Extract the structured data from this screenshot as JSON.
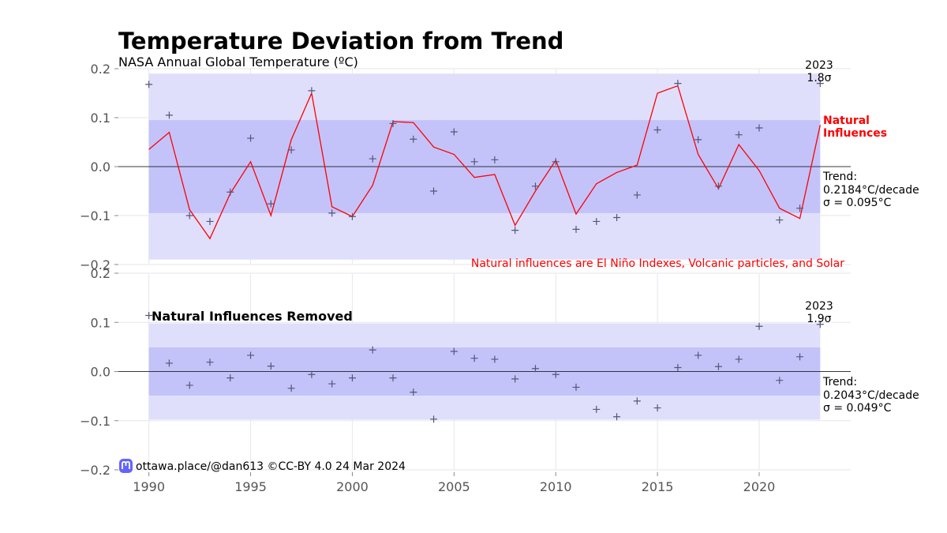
{
  "chart_title": "Temperature Deviation from Trend",
  "footer": {
    "credit": "ottawa.place/@dan613 ©CC-BY 4.0  24 Mar 2024",
    "logo_icon": "mastodon-icon"
  },
  "colors": {
    "band_inner": "#c3c3fa",
    "band_outer": "#dfdffc",
    "line": "#ff0000",
    "marker": "#555577"
  },
  "chart_data": [
    {
      "type": "line",
      "title": "",
      "subtitle": "NASA Annual Global Temperature (ºC)",
      "ylim": [
        -0.2,
        0.2
      ],
      "yticks": [
        "0.2",
        "0.1",
        "0.0",
        "−0.1",
        "−0.2"
      ],
      "xlim": [
        1988.5,
        2024.5
      ],
      "xticks": [
        "1990",
        "1995",
        "2000",
        "2005",
        "2010",
        "2015",
        "2020"
      ],
      "grid": true,
      "x": [
        1990,
        1991,
        1992,
        1993,
        1994,
        1995,
        1996,
        1997,
        1998,
        1999,
        2000,
        2001,
        2002,
        2003,
        2004,
        2005,
        2006,
        2007,
        2008,
        2009,
        2010,
        2011,
        2012,
        2013,
        2014,
        2015,
        2016,
        2017,
        2018,
        2019,
        2020,
        2021,
        2022,
        2023
      ],
      "series": [
        {
          "name": "Natural Influences",
          "style": "line",
          "values": [
            0.035,
            0.07,
            -0.088,
            -0.147,
            -0.055,
            0.01,
            -0.1,
            0.055,
            0.15,
            -0.082,
            -0.102,
            -0.038,
            0.092,
            0.09,
            0.04,
            0.025,
            -0.022,
            -0.016,
            -0.12,
            -0.05,
            0.013,
            -0.097,
            -0.035,
            -0.012,
            0.003,
            0.15,
            0.165,
            0.025,
            -0.045,
            0.045,
            -0.008,
            -0.085,
            -0.106,
            0.085
          ]
        },
        {
          "name": "",
          "style": "markers",
          "values": [
            0.168,
            0.105,
            -0.1,
            -0.112,
            -0.052,
            0.058,
            -0.076,
            0.034,
            0.155,
            -0.095,
            -0.102,
            0.016,
            0.088,
            0.056,
            -0.05,
            0.071,
            0.01,
            0.014,
            -0.13,
            -0.04,
            0.01,
            -0.128,
            -0.112,
            -0.104,
            -0.058,
            0.075,
            0.17,
            0.055,
            -0.04,
            0.065,
            0.079,
            -0.109,
            -0.085,
            0.17
          ]
        }
      ],
      "bands": {
        "sigma": 0.095,
        "inner": [
          -0.095,
          0.095
        ],
        "outer": [
          -0.19,
          0.19
        ]
      },
      "annotations": {
        "last_year": "2023",
        "last_sigma": "1.8σ",
        "natural_label_1": "Natural",
        "natural_label_2": "Influences",
        "trend_label": "Trend:",
        "trend_rate": "0.2184°C/decade",
        "sigma_label": "σ = 0.095°C",
        "natural_note": "Natural influences are El Niño Indexes, Volcanic particles, and Solar"
      }
    },
    {
      "type": "scatter",
      "title": "Natural Influences Removed",
      "ylim": [
        -0.2,
        0.2
      ],
      "yticks": [
        "0.2",
        "0.1",
        "0.0",
        "−0.1",
        "−0.2"
      ],
      "xlim": [
        1988.5,
        2024.5
      ],
      "xticks": [
        "1990",
        "1995",
        "2000",
        "2005",
        "2010",
        "2015",
        "2020"
      ],
      "grid": true,
      "x": [
        1990,
        1991,
        1992,
        1993,
        1994,
        1995,
        1996,
        1997,
        1998,
        1999,
        2000,
        2001,
        2002,
        2003,
        2004,
        2005,
        2006,
        2007,
        2008,
        2009,
        2010,
        2011,
        2012,
        2013,
        2014,
        2015,
        2016,
        2017,
        2018,
        2019,
        2020,
        2021,
        2022,
        2023
      ],
      "series": [
        {
          "name": "",
          "style": "markers",
          "values": [
            0.114,
            0.017,
            -0.028,
            0.019,
            -0.013,
            0.033,
            0.011,
            -0.034,
            -0.006,
            -0.025,
            -0.013,
            0.044,
            -0.013,
            -0.042,
            -0.097,
            0.041,
            0.027,
            0.025,
            -0.015,
            0.006,
            -0.006,
            -0.032,
            -0.077,
            -0.092,
            -0.06,
            -0.074,
            0.008,
            0.033,
            0.01,
            0.025,
            0.092,
            -0.018,
            0.03,
            0.096
          ]
        }
      ],
      "bands": {
        "sigma": 0.049,
        "inner": [
          -0.049,
          0.049
        ],
        "outer": [
          -0.098,
          0.098
        ]
      },
      "annotations": {
        "last_year": "2023",
        "last_sigma": "1.9σ",
        "trend_label": "Trend:",
        "trend_rate": "0.2043°C/decade",
        "sigma_label": "σ = 0.049°C"
      }
    }
  ]
}
